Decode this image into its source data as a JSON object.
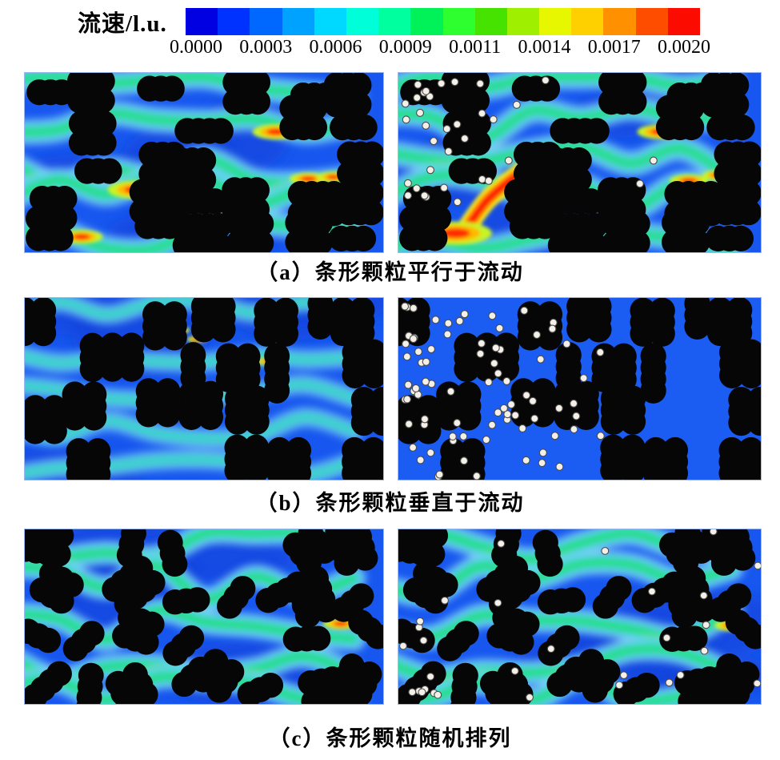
{
  "legend": {
    "title": "流速/l.u.",
    "ticks": [
      "0.0000",
      "0.0003",
      "0.0006",
      "0.0009",
      "0.0011",
      "0.0014",
      "0.0017",
      "0.0020"
    ],
    "colors": [
      "#0000e2",
      "#0032ff",
      "#0068ff",
      "#00a2ff",
      "#00d9ff",
      "#00ffd8",
      "#00ff9e",
      "#00f158",
      "#2eff2e",
      "#47e300",
      "#9ef000",
      "#e6f700",
      "#ffd000",
      "#ff9000",
      "#ff4d00",
      "#fb0b00"
    ]
  },
  "rows": [
    {
      "id": "a",
      "caption": "（a）条形颗粒平行于流动"
    },
    {
      "id": "b",
      "caption": "（b）条形颗粒垂直于流动"
    },
    {
      "id": "c",
      "caption": "（c）条形颗粒随机排列"
    }
  ],
  "chart_data": {
    "type": "heatmap",
    "title": "流速/l.u.",
    "subtitle": "Lattice-Boltzmann pore-scale flow velocity fields around strip-shaped coarse particles (left: without fines, right: with fine particles)",
    "colorbar": {
      "label": "流速/l.u.",
      "min": 0.0,
      "max": 0.002,
      "tick_values": [
        0.0,
        0.0003,
        0.0006,
        0.0009,
        0.0011,
        0.0014,
        0.0017,
        0.002
      ],
      "segments": 16,
      "orientation": "horizontal"
    },
    "palette": {
      "background": "#1757ef",
      "background_flat": "#1b5cf3",
      "dark_patch": "#0d40d8",
      "particle": "#060606",
      "fine_particle": "#f4f0e8",
      "fine_outline": "#4a4a4a",
      "border": "#9bb9f5"
    },
    "panels": [
      {
        "row": "a",
        "side": "left",
        "orientation": "horizontal",
        "flow": "strong",
        "cluster_seed": 11,
        "streak_seed": 21,
        "channels": [
          0.05,
          0.3,
          0.52,
          0.68,
          0.94
        ],
        "hotspots": [
          [
            0.31,
            0.65,
            1.25
          ],
          [
            0.7,
            0.33,
            1.05
          ],
          [
            0.79,
            0.59,
            0.85
          ],
          [
            0.86,
            0.58,
            0.75
          ],
          [
            0.16,
            0.91,
            0.95
          ]
        ],
        "fines": null
      },
      {
        "row": "a",
        "side": "right",
        "orientation": "horizontal",
        "flow": "strong",
        "cluster_seed": 11,
        "streak_seed": 22,
        "channels": [
          0.05,
          0.3,
          0.52,
          0.68,
          0.94
        ],
        "hotspots": [
          [
            0.72,
            0.33,
            1.0
          ],
          [
            0.8,
            0.6,
            0.85
          ],
          [
            0.88,
            0.57,
            0.7
          ],
          [
            0.16,
            0.89,
            1.6
          ]
        ],
        "red_path": [
          [
            0.34,
            0.55
          ],
          [
            0.25,
            0.7
          ],
          [
            0.19,
            0.86
          ]
        ],
        "fines": {
          "count": 34,
          "seed": 31,
          "spread": "left-top"
        }
      },
      {
        "row": "b",
        "side": "left",
        "orientation": "vertical",
        "flow": "weak",
        "cluster_seed": 12,
        "streak_seed": 23,
        "channels": [
          0.05,
          0.3,
          0.5,
          0.72,
          0.95
        ],
        "hotspots": [
          [
            0.43,
            0.18,
            0.5
          ],
          [
            0.48,
            0.23,
            0.45
          ],
          [
            0.68,
            0.35,
            0.55
          ],
          [
            0.17,
            0.61,
            0.5
          ]
        ],
        "fines": null
      },
      {
        "row": "b",
        "side": "right",
        "orientation": "vertical",
        "flow": "none",
        "cluster_seed": 12,
        "streak_seed": 24,
        "channels": [],
        "hotspots": [],
        "fines": {
          "count": 80,
          "seed": 32,
          "spread": "left"
        }
      },
      {
        "row": "c",
        "side": "left",
        "orientation": "random",
        "flow": "strong",
        "cluster_seed": 13,
        "streak_seed": 25,
        "channels": [
          0.07,
          0.3,
          0.54,
          0.76,
          0.95
        ],
        "hotspots": [
          [
            0.29,
            0.34,
            1.0
          ],
          [
            0.88,
            0.54,
            0.8
          ]
        ],
        "fines": null
      },
      {
        "row": "c",
        "side": "right",
        "orientation": "random",
        "flow": "strong",
        "cluster_seed": 13,
        "streak_seed": 26,
        "channels": [
          0.07,
          0.3,
          0.54,
          0.76,
          0.95
        ],
        "hotspots": [
          [
            0.31,
            0.33,
            1.0
          ],
          [
            0.92,
            0.55,
            0.8
          ]
        ],
        "fines": {
          "count": 30,
          "seed": 33,
          "spread": "scatter"
        }
      }
    ]
  }
}
